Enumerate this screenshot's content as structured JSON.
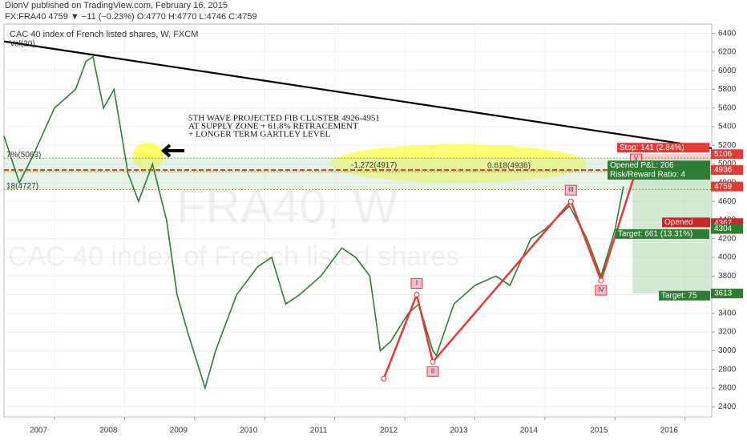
{
  "header": {
    "published": "DionV published on TradingView.com, February 16, 2015",
    "quote": "FX:FRA40 4759 ▼ −11 (−0.23%) O:4770 H:4770 L:4746 C:4759"
  },
  "watermark": [
    "FRA40, W",
    "CAC 40 index of French listed shares"
  ],
  "chart_data": {
    "type": "line",
    "title": "CAC 40 index of French listed shares, W, FXCM",
    "subtitle": "Vol(20)",
    "annotation": [
      "5TH WAVE PROJECTED FIB CLUSTER 4926-4951",
      "AT SUPPLY ZONE + 61.8% RETRACEMENT",
      "+ LONGER TERM GARTLEY LEVEL"
    ],
    "x": [
      2006.28,
      2006.5,
      2006.7,
      2007.0,
      2007.3,
      2007.45,
      2007.55,
      2007.7,
      2007.85,
      2008.05,
      2008.2,
      2008.4,
      2008.6,
      2008.75,
      2008.9,
      2009.15,
      2009.3,
      2009.6,
      2009.9,
      2010.1,
      2010.3,
      2010.5,
      2010.8,
      2011.1,
      2011.3,
      2011.5,
      2011.65,
      2011.8,
      2012.05,
      2012.2,
      2012.4,
      2012.45,
      2012.7,
      2013.0,
      2013.3,
      2013.5,
      2013.8,
      2014.0,
      2014.35,
      2014.6,
      2014.8,
      2015.0,
      2015.12
    ],
    "values": [
      5300,
      4800,
      5100,
      5600,
      5800,
      6100,
      6150,
      5600,
      5800,
      4900,
      4600,
      5000,
      4400,
      3600,
      3200,
      2600,
      3000,
      3600,
      3900,
      4000,
      3500,
      3600,
      3800,
      4100,
      4000,
      3800,
      3000,
      3100,
      3400,
      3500,
      3000,
      2950,
      3500,
      3700,
      3800,
      3700,
      4200,
      4300,
      4550,
      4200,
      3800,
      4300,
      4759
    ],
    "color": "#2e7d32",
    "trendline": {
      "x": [
        2006.28,
        2016.38
      ],
      "values": [
        6314,
        5170
      ],
      "color": "#000000"
    },
    "waves": {
      "x": [
        2011.7,
        2012.17,
        2012.4,
        2014.37,
        2014.8,
        2015.3
      ],
      "values": [
        2700,
        3600,
        2880,
        4600,
        3750,
        4936
      ],
      "labels": [
        null,
        "I",
        "II",
        "III",
        "IV",
        "V"
      ],
      "color": "#e53935"
    },
    "levels": [
      {
        "value": 5063,
        "label": "7%(5063)"
      },
      {
        "value": 4936,
        "label": "0.618(4936)"
      },
      {
        "value": 4917,
        "label": "-1.272(4917)"
      },
      {
        "value": 4727,
        "label": "18(4727)"
      }
    ],
    "price_tags": [
      {
        "value": 5106,
        "color": "#e53935"
      },
      {
        "value": 4936,
        "color": "#e53935"
      },
      {
        "value": 4759,
        "color": "#e53935"
      },
      {
        "value": 4367,
        "color": "#c62828"
      },
      {
        "value": 4304,
        "color": "#2e7d32"
      },
      {
        "value": 3613,
        "color": "#2e7d32"
      }
    ],
    "position_labels": [
      "Stop: 141 (2.84%)",
      "Opened P&L: 206",
      "Risk/Reward Ratio: 4",
      "Target: 661 (13.31%)",
      "Opened",
      "Target: 75"
    ],
    "xlim": [
      2006.28,
      2016.38
    ],
    "xticks": [
      2007,
      2008,
      2009,
      2010,
      2011,
      2012,
      2013,
      2014,
      2015,
      2016
    ],
    "ylim": [
      2290,
      6500
    ],
    "yticks": [
      2400,
      2600,
      2800,
      3000,
      3200,
      3400,
      3600,
      3800,
      4000,
      4200,
      4400,
      4600,
      4800,
      5000,
      5200,
      5400,
      5600,
      5800,
      6000,
      6200,
      6400
    ],
    "grid": true
  }
}
